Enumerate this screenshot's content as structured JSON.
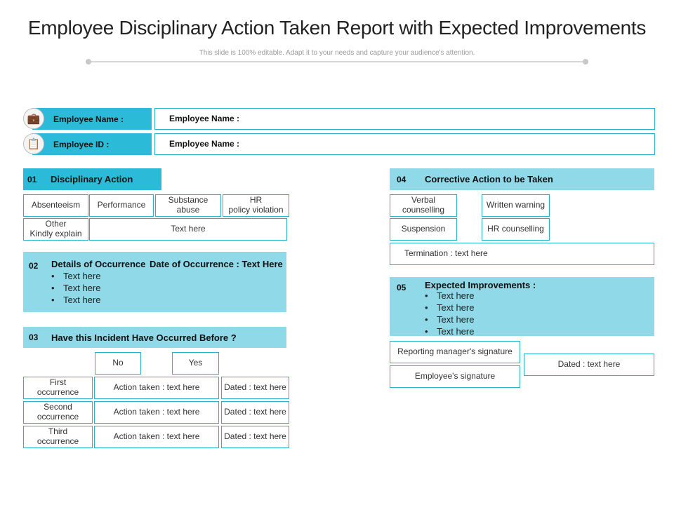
{
  "header": {
    "title": "Employee Disciplinary Action Taken Report with Expected Improvements",
    "subtitle": "This slide is 100% editable. Adapt it to your needs and capture your audience's attention."
  },
  "employee": {
    "name_label": "Employee Name :",
    "name_value": "Employee Name :",
    "id_label": "Employee ID :",
    "id_value": "Employee Name :",
    "name_icon": "briefcase-icon",
    "id_icon": "id-badge-icon"
  },
  "section1": {
    "number": "01",
    "title": "Disciplinary Action",
    "options": [
      "Absenteeism",
      "Performance",
      "Substance abuse",
      "HR\npolicy violation"
    ],
    "other": "Other\nKindly explain",
    "text": "Text here"
  },
  "section2": {
    "number": "02",
    "title": "Details of Occurrence",
    "date": "Date of Occurrence : Text Here",
    "bullets": [
      "Text here",
      "Text here",
      "Text here"
    ]
  },
  "section3": {
    "number": "03",
    "title": "Have this Incident Have Occurred Before ?",
    "no": "No",
    "yes": "Yes",
    "rows": [
      {
        "label": "First\noccurrence",
        "action": "Action taken : text here",
        "dated": "Dated : text here"
      },
      {
        "label": "Second\noccurrence",
        "action": "Action taken : text here",
        "dated": "Dated : text here"
      },
      {
        "label": "Third\noccurrence",
        "action": "Action taken : text here",
        "dated": "Dated : text here"
      }
    ]
  },
  "section4": {
    "number": "04",
    "title": "Corrective Action to be Taken",
    "options": [
      "Verbal\ncounselling",
      "Written warning",
      "Suspension",
      "HR counselling"
    ],
    "termination": "Termination : text here"
  },
  "section5": {
    "number": "05",
    "title": "Expected Improvements :",
    "bullets": [
      "Text here",
      "Text here",
      "Text here",
      "Text here"
    ],
    "manager_sig": "Reporting manager's signature",
    "employee_sig": "Employee's signature",
    "dated": "Dated : text here"
  },
  "colors": {
    "accent": "#2bbad7",
    "light": "#8fd9e8",
    "border": "#2bb0cc"
  }
}
